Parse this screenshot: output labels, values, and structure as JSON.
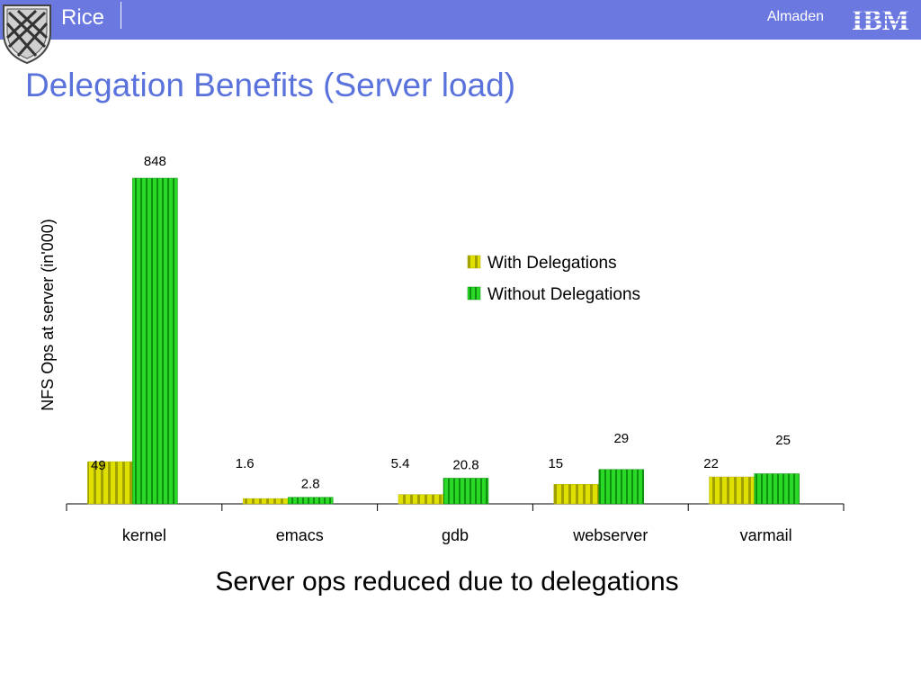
{
  "header": {
    "left_label": "Rice",
    "right_label": "Almaden",
    "logo_text": "IBM"
  },
  "slide": {
    "title": "Delegation Benefits (Server load)",
    "subtitle": "Server ops reduced due to delegations"
  },
  "colors": {
    "header_bar": "#6a78e0",
    "title": "#5a72dc",
    "with_delegations": "#e6e600",
    "without_delegations": "#22c41e"
  },
  "chart_data": {
    "type": "bar",
    "title": "",
    "xlabel": "",
    "ylabel": "NFS Ops at server (in'000)",
    "categories": [
      "kernel",
      "emacs",
      "gdb",
      "webserver",
      "varmail"
    ],
    "series": [
      {
        "name": "With Delegations",
        "values": [
          49,
          1.6,
          5.4,
          15,
          22
        ],
        "labels": [
          "49",
          "1.6",
          "5.4",
          "15",
          "22"
        ]
      },
      {
        "name": "Without Delegations",
        "values": [
          848,
          2.8,
          20.8,
          29,
          25
        ],
        "labels": [
          "848",
          "2.8",
          "20.8",
          "29",
          "25"
        ]
      }
    ],
    "legend_position": "right",
    "grid": false,
    "note": "bars are not drawn to a common linear scale"
  }
}
